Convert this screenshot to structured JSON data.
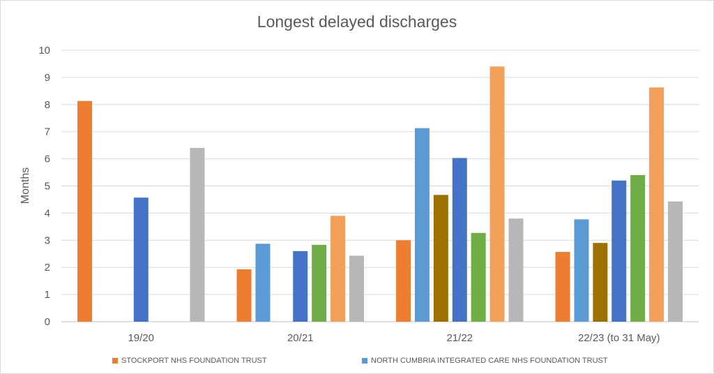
{
  "chart_data": {
    "type": "bar",
    "title": "Longest delayed discharges",
    "xlabel": "",
    "ylabel": "Months",
    "ylim": [
      0,
      10
    ],
    "yticks": [
      0,
      1,
      2,
      3,
      4,
      5,
      6,
      7,
      8,
      9,
      10
    ],
    "grid": true,
    "legend_position": "bottom",
    "categories": [
      "19/20",
      "20/21",
      "21/22",
      "22/23 (to 31 May)"
    ],
    "series": [
      {
        "name": "STOCKPORT NHS FOUNDATION TRUST",
        "color": "#ed7d31",
        "values": [
          8.13,
          1.93,
          3.0,
          2.57
        ]
      },
      {
        "name": "NORTH CUMBRIA INTEGRATED CARE NHS FOUNDATION TRUST",
        "color": "#5b9bd5",
        "values": [
          null,
          2.87,
          7.13,
          3.77
        ]
      },
      {
        "color": "#9e7000",
        "values": [
          null,
          null,
          4.67,
          2.9
        ]
      },
      {
        "color": "#4472c4",
        "values": [
          4.57,
          2.6,
          6.03,
          5.2
        ]
      },
      {
        "color": "#70ad47",
        "values": [
          null,
          2.83,
          3.27,
          5.4
        ]
      },
      {
        "color": "#f4a05b",
        "values": [
          null,
          3.9,
          9.4,
          8.63
        ]
      },
      {
        "color": "#b7b7b7",
        "values": [
          6.4,
          2.43,
          3.8,
          4.43
        ]
      }
    ]
  }
}
